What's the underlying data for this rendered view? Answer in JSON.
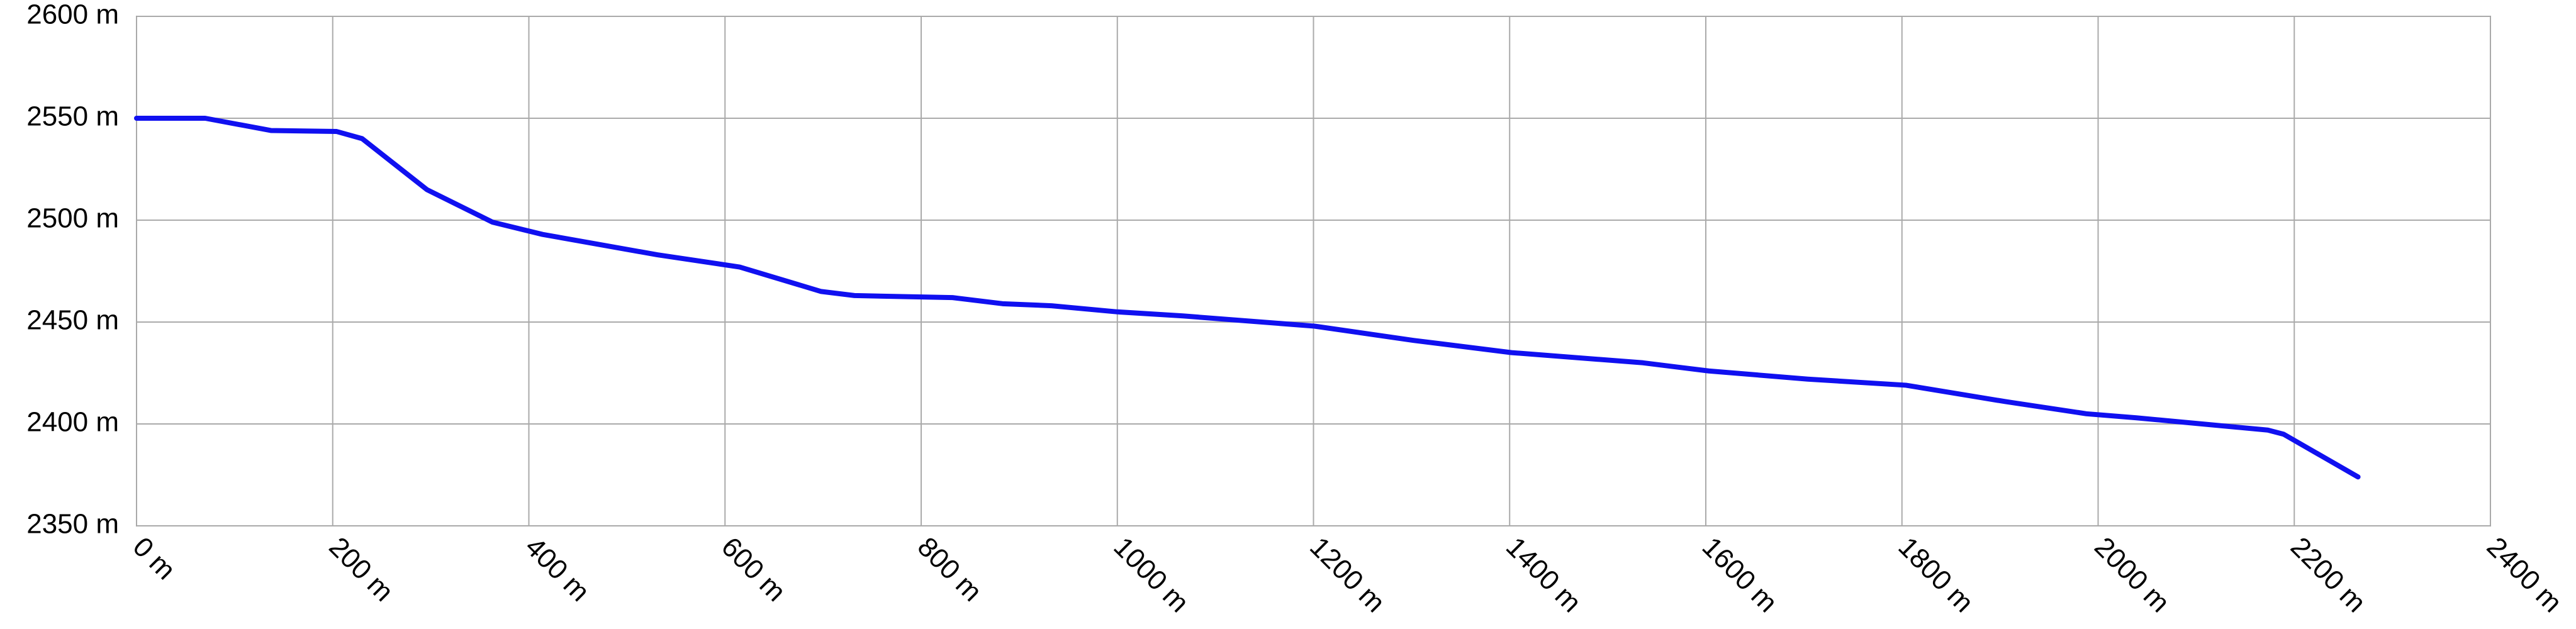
{
  "chart_data": {
    "type": "line",
    "x": [
      0,
      70,
      137,
      204,
      230,
      296,
      363,
      414,
      531,
      615,
      698,
      732,
      832,
      883,
      933,
      1000,
      1067,
      1201,
      1302,
      1402,
      1536,
      1603,
      1704,
      1804,
      1905,
      1988,
      2039,
      2106,
      2173,
      2189,
      2265
    ],
    "values": [
      2550,
      2550,
      2544,
      2543.5,
      2540,
      2515,
      2499,
      2493,
      2483,
      2477,
      2465,
      2463,
      2462,
      2459,
      2458,
      2455,
      2453,
      2448,
      2441,
      2435,
      2430,
      2426,
      2422,
      2419,
      2411,
      2405,
      2403,
      2400,
      2397,
      2395,
      2374
    ],
    "color": "#1010f0",
    "xlim": [
      0,
      2400
    ],
    "xticks": [
      {
        "value": 0,
        "label": "0 m"
      },
      {
        "value": 200,
        "label": "200 m"
      },
      {
        "value": 400,
        "label": "400 m"
      },
      {
        "value": 600,
        "label": "600 m"
      },
      {
        "value": 800,
        "label": "800 m"
      },
      {
        "value": 1000,
        "label": "1000 m"
      },
      {
        "value": 1200,
        "label": "1200 m"
      },
      {
        "value": 1400,
        "label": "1400 m"
      },
      {
        "value": 1600,
        "label": "1600 m"
      },
      {
        "value": 1800,
        "label": "1800 m"
      },
      {
        "value": 2000,
        "label": "2000 m"
      },
      {
        "value": 2200,
        "label": "2200 m"
      },
      {
        "value": 2400,
        "label": "2400 m"
      }
    ],
    "ylim": [
      2350,
      2600
    ],
    "yticks": [
      {
        "value": 2350,
        "label": "2350 m"
      },
      {
        "value": 2400,
        "label": "2400 m"
      },
      {
        "value": 2450,
        "label": "2450 m"
      },
      {
        "value": 2500,
        "label": "2500 m"
      },
      {
        "value": 2550,
        "label": "2550 m"
      },
      {
        "value": 2600,
        "label": "2600 m"
      }
    ],
    "grid": true
  }
}
